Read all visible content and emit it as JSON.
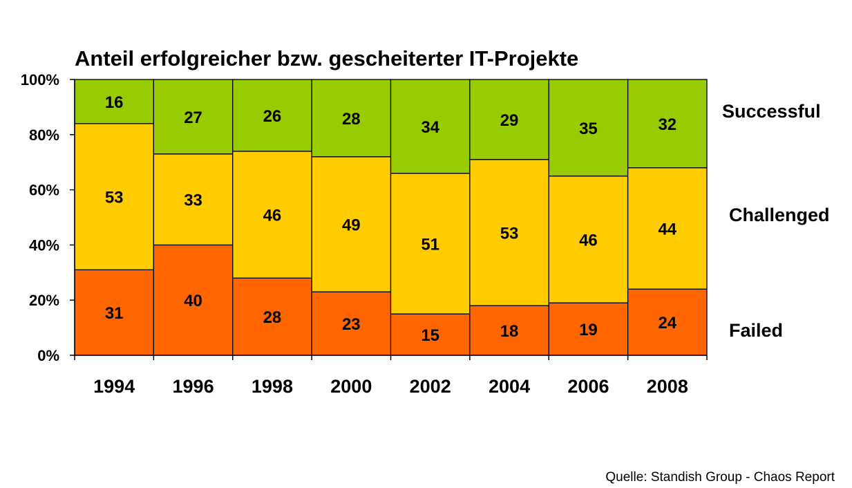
{
  "chart_data": {
    "type": "bar",
    "stacked": true,
    "title": "Anteil erfolgreicher bzw. gescheiterter IT-Projekte",
    "categories": [
      "1994",
      "1996",
      "1998",
      "2000",
      "2002",
      "2004",
      "2006",
      "2008"
    ],
    "series": [
      {
        "name": "Failed",
        "values": [
          31,
          40,
          28,
          23,
          15,
          18,
          19,
          24
        ],
        "color": "#ff6600"
      },
      {
        "name": "Challenged",
        "values": [
          53,
          33,
          46,
          49,
          51,
          53,
          46,
          44
        ],
        "color": "#ffcc00"
      },
      {
        "name": "Successful",
        "values": [
          16,
          27,
          26,
          28,
          34,
          29,
          35,
          32
        ],
        "color": "#99cc00"
      }
    ],
    "y_ticks": [
      "0%",
      "20%",
      "40%",
      "60%",
      "80%",
      "100%"
    ],
    "ylim": [
      0,
      100
    ],
    "legend_placement": "right",
    "source": "Quelle: Standish Group - Chaos Report"
  }
}
